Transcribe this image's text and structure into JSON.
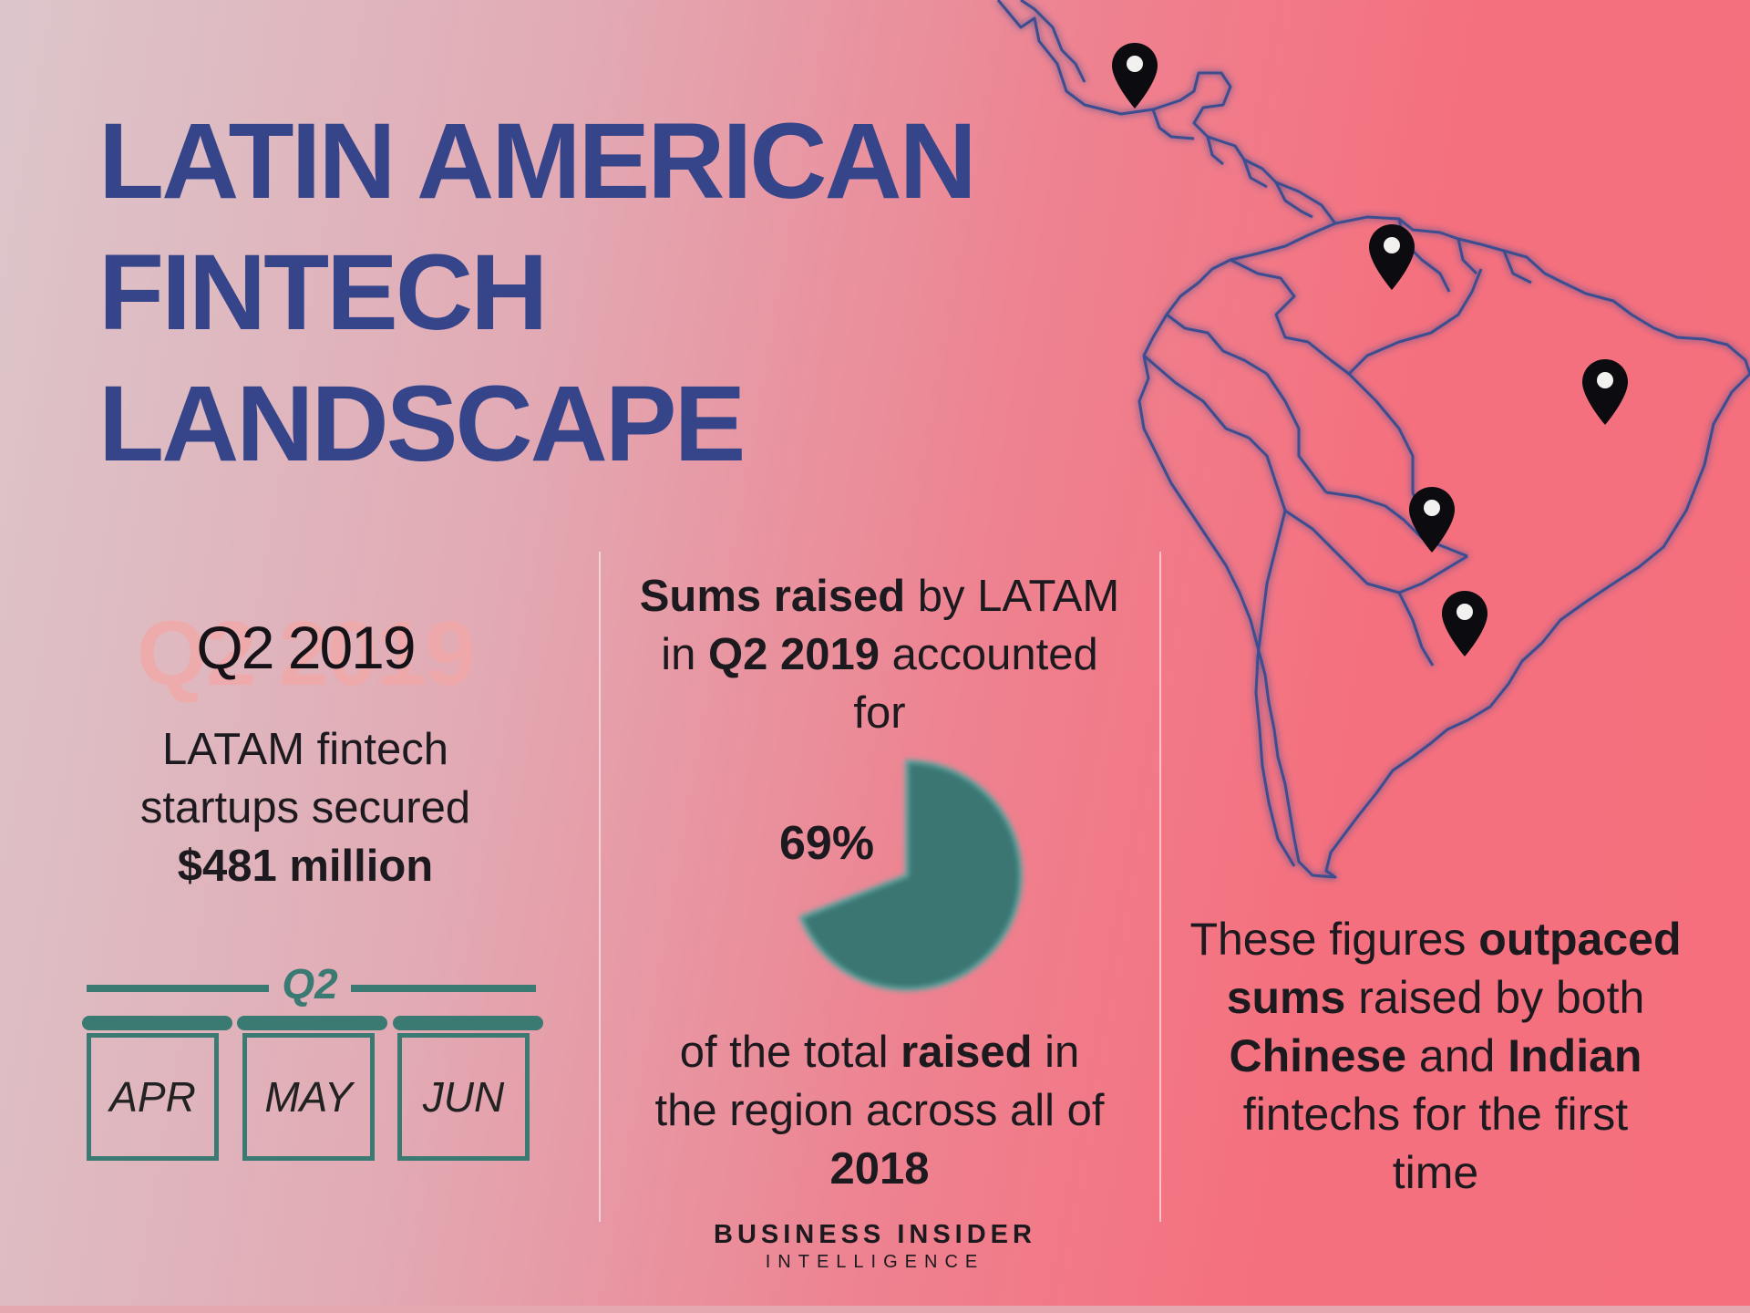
{
  "title": {
    "lines": [
      "LATIN AMERICAN",
      "FINTECH",
      "LANDSCAPE"
    ]
  },
  "left": {
    "ghost_text": "Q2 2019",
    "period": "Q2 2019",
    "line1": "LATAM fintech",
    "line2": "startups secured",
    "amount": "$481 million",
    "quarter_label": "Q2",
    "months": [
      "APR",
      "MAY",
      "JUN"
    ]
  },
  "middle": {
    "top_bold1": "Sums raised",
    "top_plain1": " by LATAM",
    "top_plain2": "in ",
    "top_bold2": "Q2 2019",
    "top_plain3": " accounted",
    "top_plain4": "for",
    "pie_percent": "69%",
    "pie_value": 69,
    "pie_color": "#3b7672",
    "bottom_plain1": "of the total ",
    "bottom_bold1": "raised",
    "bottom_plain2": " in",
    "bottom_plain3": "the region across all of",
    "bottom_bold2": "2018"
  },
  "right": {
    "p1": "These figures ",
    "b1": "outpaced",
    "b2": "sums",
    "p2": " raised by both",
    "b3": "Chinese",
    "p3": " and ",
    "b4": "Indian",
    "p4": "fintechs for the first",
    "p5": "time"
  },
  "brand": {
    "line1": "BUSINESS INSIDER",
    "line2": "INTELLIGENCE"
  },
  "colors": {
    "title": "#36458a",
    "accent_teal": "#3a7a73",
    "map_outline": "#3c4d8f",
    "pin": "#0c0c10"
  }
}
